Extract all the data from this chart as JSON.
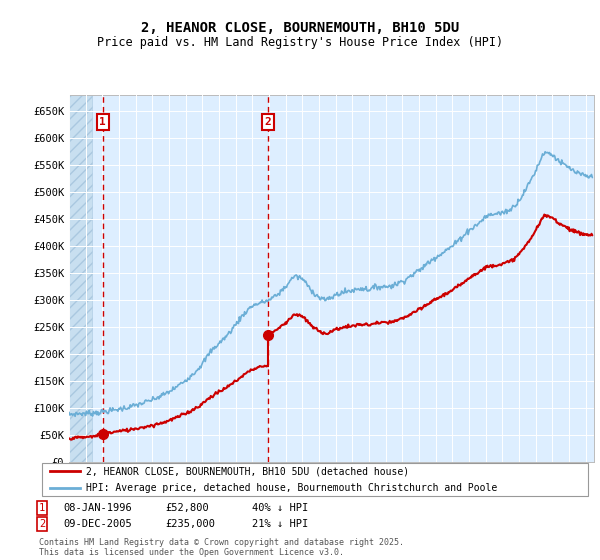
{
  "title": "2, HEANOR CLOSE, BOURNEMOUTH, BH10 5DU",
  "subtitle": "Price paid vs. HM Land Registry's House Price Index (HPI)",
  "ylim": [
    0,
    680000
  ],
  "yticks": [
    0,
    50000,
    100000,
    150000,
    200000,
    250000,
    300000,
    350000,
    400000,
    450000,
    500000,
    550000,
    600000,
    650000
  ],
  "ytick_labels": [
    "£0",
    "£50K",
    "£100K",
    "£150K",
    "£200K",
    "£250K",
    "£300K",
    "£350K",
    "£400K",
    "£450K",
    "£500K",
    "£550K",
    "£600K",
    "£650K"
  ],
  "sale1_date": 1996.03,
  "sale1_price": 52800,
  "sale1_label": "1",
  "sale2_date": 2005.92,
  "sale2_price": 235000,
  "sale2_label": "2",
  "sale1_info_date": "08-JAN-1996",
  "sale1_info_price": "£52,800",
  "sale1_info_hpi": "40% ↓ HPI",
  "sale2_info_date": "09-DEC-2005",
  "sale2_info_price": "£235,000",
  "sale2_info_hpi": "21% ↓ HPI",
  "hpi_line_color": "#6baed6",
  "price_line_color": "#cc0000",
  "sale_marker_color": "#cc0000",
  "vline_color": "#cc0000",
  "bg_chart_color": "#ddeeff",
  "grid_color": "#ffffff",
  "legend_line1": "2, HEANOR CLOSE, BOURNEMOUTH, BH10 5DU (detached house)",
  "legend_line2": "HPI: Average price, detached house, Bournemouth Christchurch and Poole",
  "copyright_text": "Contains HM Land Registry data © Crown copyright and database right 2025.\nThis data is licensed under the Open Government Licence v3.0.",
  "xmin": 1994.0,
  "xmax": 2025.5,
  "hpi_data": [
    [
      1994.0,
      88000
    ],
    [
      1994.5,
      89500
    ],
    [
      1995.0,
      90000
    ],
    [
      1995.5,
      91000
    ],
    [
      1996.0,
      93000
    ],
    [
      1996.5,
      95000
    ],
    [
      1997.0,
      98000
    ],
    [
      1997.5,
      101000
    ],
    [
      1998.0,
      105000
    ],
    [
      1998.5,
      110000
    ],
    [
      1999.0,
      115000
    ],
    [
      1999.5,
      122000
    ],
    [
      2000.0,
      130000
    ],
    [
      2000.5,
      140000
    ],
    [
      2001.0,
      152000
    ],
    [
      2001.5,
      165000
    ],
    [
      2002.0,
      182000
    ],
    [
      2002.5,
      205000
    ],
    [
      2003.0,
      220000
    ],
    [
      2003.5,
      235000
    ],
    [
      2004.0,
      255000
    ],
    [
      2004.5,
      275000
    ],
    [
      2005.0,
      290000
    ],
    [
      2005.5,
      295000
    ],
    [
      2006.0,
      300000
    ],
    [
      2006.5,
      310000
    ],
    [
      2007.0,
      325000
    ],
    [
      2007.5,
      345000
    ],
    [
      2008.0,
      340000
    ],
    [
      2008.5,
      320000
    ],
    [
      2009.0,
      305000
    ],
    [
      2009.5,
      300000
    ],
    [
      2010.0,
      310000
    ],
    [
      2010.5,
      315000
    ],
    [
      2011.0,
      318000
    ],
    [
      2011.5,
      322000
    ],
    [
      2012.0,
      320000
    ],
    [
      2012.5,
      325000
    ],
    [
      2013.0,
      325000
    ],
    [
      2013.5,
      328000
    ],
    [
      2014.0,
      335000
    ],
    [
      2014.5,
      345000
    ],
    [
      2015.0,
      355000
    ],
    [
      2015.5,
      368000
    ],
    [
      2016.0,
      380000
    ],
    [
      2016.5,
      390000
    ],
    [
      2017.0,
      400000
    ],
    [
      2017.5,
      415000
    ],
    [
      2018.0,
      430000
    ],
    [
      2018.5,
      440000
    ],
    [
      2019.0,
      455000
    ],
    [
      2019.5,
      460000
    ],
    [
      2020.0,
      462000
    ],
    [
      2020.5,
      468000
    ],
    [
      2021.0,
      485000
    ],
    [
      2021.5,
      510000
    ],
    [
      2022.0,
      540000
    ],
    [
      2022.5,
      575000
    ],
    [
      2023.0,
      570000
    ],
    [
      2023.5,
      555000
    ],
    [
      2024.0,
      545000
    ],
    [
      2024.5,
      535000
    ],
    [
      2025.0,
      530000
    ],
    [
      2025.4,
      528000
    ]
  ],
  "red_data_seg1": [
    [
      1994.0,
      44000
    ],
    [
      1994.5,
      45000
    ],
    [
      1995.0,
      46000
    ],
    [
      1995.5,
      47500
    ],
    [
      1996.0,
      52800
    ],
    [
      1996.5,
      54500
    ],
    [
      1997.0,
      57000
    ],
    [
      1997.5,
      59000
    ],
    [
      1998.0,
      62000
    ],
    [
      1998.5,
      65000
    ],
    [
      1999.0,
      68000
    ],
    [
      1999.5,
      72000
    ],
    [
      2000.0,
      77000
    ],
    [
      2000.5,
      83000
    ],
    [
      2001.0,
      90000
    ],
    [
      2001.5,
      98000
    ],
    [
      2002.0,
      108000
    ],
    [
      2002.5,
      121000
    ],
    [
      2003.0,
      130000
    ],
    [
      2003.5,
      139000
    ],
    [
      2004.0,
      150000
    ],
    [
      2004.5,
      162000
    ],
    [
      2005.0,
      172000
    ],
    [
      2005.5,
      177000
    ],
    [
      2005.92,
      178000
    ]
  ],
  "red_data_seg2": [
    [
      2005.92,
      235000
    ],
    [
      2006.0,
      238000
    ],
    [
      2006.5,
      246000
    ],
    [
      2007.0,
      258000
    ],
    [
      2007.5,
      274000
    ],
    [
      2008.0,
      270000
    ],
    [
      2008.5,
      254000
    ],
    [
      2009.0,
      242000
    ],
    [
      2009.5,
      238000
    ],
    [
      2010.0,
      246000
    ],
    [
      2010.5,
      250000
    ],
    [
      2011.0,
      252000
    ],
    [
      2011.5,
      255000
    ],
    [
      2012.0,
      254000
    ],
    [
      2012.5,
      258000
    ],
    [
      2013.0,
      258000
    ],
    [
      2013.5,
      260000
    ],
    [
      2014.0,
      266000
    ],
    [
      2014.5,
      274000
    ],
    [
      2015.0,
      282000
    ],
    [
      2015.5,
      292000
    ],
    [
      2016.0,
      302000
    ],
    [
      2016.5,
      310000
    ],
    [
      2017.0,
      318000
    ],
    [
      2017.5,
      329000
    ],
    [
      2018.0,
      342000
    ],
    [
      2018.5,
      350000
    ],
    [
      2019.0,
      361000
    ],
    [
      2019.5,
      365000
    ],
    [
      2020.0,
      367000
    ],
    [
      2020.5,
      372000
    ],
    [
      2021.0,
      385000
    ],
    [
      2021.5,
      405000
    ],
    [
      2022.0,
      429000
    ],
    [
      2022.5,
      457000
    ],
    [
      2023.0,
      453000
    ],
    [
      2023.5,
      441000
    ],
    [
      2024.0,
      433000
    ],
    [
      2024.5,
      425000
    ],
    [
      2025.0,
      422000
    ],
    [
      2025.4,
      420000
    ]
  ]
}
